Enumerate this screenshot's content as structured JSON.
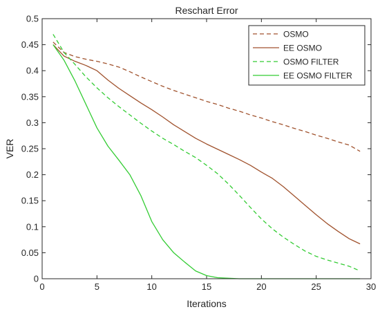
{
  "chart_data": {
    "type": "line",
    "title": "Reschart Error",
    "xlabel": "Iterations",
    "ylabel": "VER",
    "xlim": [
      0,
      30
    ],
    "ylim": [
      0,
      0.5
    ],
    "xticks": [
      0,
      5,
      10,
      15,
      20,
      25,
      30
    ],
    "yticks": [
      0,
      0.05,
      0.1,
      0.15,
      0.2,
      0.25,
      0.3,
      0.35,
      0.4,
      0.45,
      0.5
    ],
    "xtick_labels": [
      "0",
      "5",
      "10",
      "15",
      "20",
      "25",
      "30"
    ],
    "ytick_labels": [
      "0",
      "0.05",
      "0.1",
      "0.15",
      "0.2",
      "0.25",
      "0.3",
      "0.35",
      "0.4",
      "0.45",
      "0.5"
    ],
    "grid": false,
    "legend_position": "top-right",
    "series": [
      {
        "name": "OSMO",
        "color": "#a0522d",
        "dash": "dashed",
        "x": [
          1,
          2,
          3,
          4,
          5,
          6,
          7,
          8,
          9,
          10,
          11,
          12,
          13,
          14,
          15,
          16,
          17,
          18,
          19,
          20,
          21,
          22,
          23,
          24,
          25,
          26,
          27,
          28,
          29
        ],
        "y": [
          0.455,
          0.435,
          0.427,
          0.422,
          0.418,
          0.413,
          0.407,
          0.398,
          0.388,
          0.379,
          0.37,
          0.362,
          0.355,
          0.348,
          0.341,
          0.335,
          0.328,
          0.322,
          0.315,
          0.309,
          0.302,
          0.296,
          0.289,
          0.283,
          0.276,
          0.27,
          0.263,
          0.257,
          0.245
        ]
      },
      {
        "name": "EE OSMO",
        "color": "#a0522d",
        "dash": "solid",
        "x": [
          1,
          2,
          3,
          4,
          5,
          6,
          7,
          8,
          9,
          10,
          11,
          12,
          13,
          14,
          15,
          16,
          17,
          18,
          19,
          20,
          21,
          22,
          23,
          24,
          25,
          26,
          27,
          28,
          29
        ],
        "y": [
          0.45,
          0.428,
          0.418,
          0.41,
          0.4,
          0.382,
          0.366,
          0.352,
          0.338,
          0.325,
          0.311,
          0.296,
          0.283,
          0.27,
          0.259,
          0.249,
          0.239,
          0.229,
          0.218,
          0.205,
          0.193,
          0.177,
          0.159,
          0.141,
          0.123,
          0.106,
          0.091,
          0.077,
          0.067
        ]
      },
      {
        "name": "OSMO FILTER",
        "color": "#33cc33",
        "dash": "dashed",
        "x": [
          1,
          2,
          3,
          4,
          5,
          6,
          7,
          8,
          9,
          10,
          11,
          12,
          13,
          14,
          15,
          16,
          17,
          18,
          19,
          20,
          21,
          22,
          23,
          24,
          25,
          26,
          27,
          28,
          29
        ],
        "y": [
          0.47,
          0.435,
          0.412,
          0.388,
          0.367,
          0.348,
          0.331,
          0.315,
          0.299,
          0.284,
          0.27,
          0.258,
          0.245,
          0.233,
          0.218,
          0.202,
          0.182,
          0.16,
          0.137,
          0.115,
          0.096,
          0.08,
          0.066,
          0.053,
          0.043,
          0.036,
          0.03,
          0.024,
          0.015
        ]
      },
      {
        "name": "EE OSMO FILTER",
        "color": "#33cc33",
        "dash": "solid",
        "x": [
          1,
          2,
          3,
          4,
          5,
          6,
          7,
          8,
          9,
          10,
          11,
          12,
          13,
          14,
          15,
          16,
          17,
          18,
          19,
          20,
          21,
          22,
          23,
          24,
          25,
          26,
          27,
          28,
          29
        ],
        "y": [
          0.45,
          0.42,
          0.38,
          0.335,
          0.29,
          0.255,
          0.228,
          0.2,
          0.16,
          0.11,
          0.075,
          0.05,
          0.032,
          0.015,
          0.006,
          0.002,
          0.001,
          0.0,
          0.0,
          0.0,
          0.0,
          0.0,
          0.0,
          0.0,
          0.0,
          0.0,
          0.0,
          0.0,
          0.0
        ]
      }
    ]
  }
}
